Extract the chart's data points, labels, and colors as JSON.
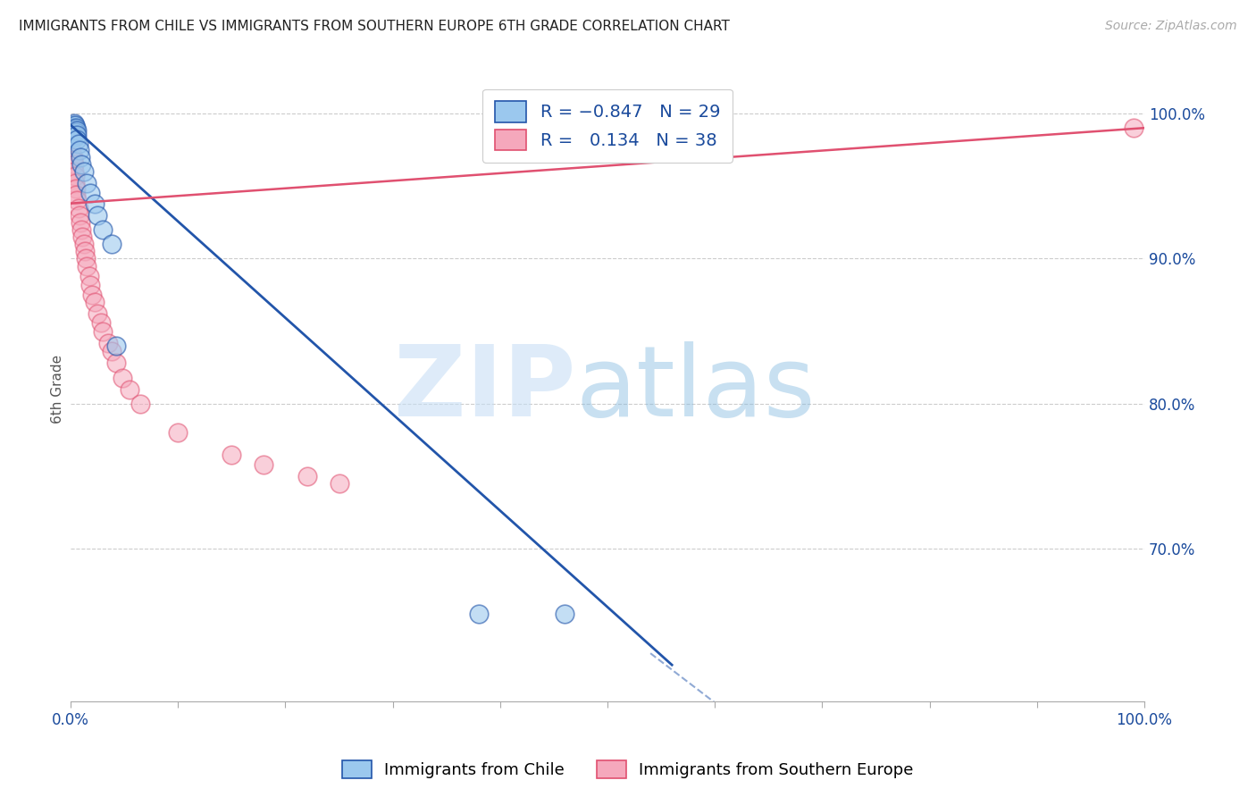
{
  "title": "IMMIGRANTS FROM CHILE VS IMMIGRANTS FROM SOUTHERN EUROPE 6TH GRADE CORRELATION CHART",
  "source": "Source: ZipAtlas.com",
  "ylabel": "6th Grade",
  "color_chile": "#9BC8EE",
  "color_seurope": "#F5A8BC",
  "color_line_chile": "#2255AA",
  "color_line_seurope": "#E05070",
  "color_text_blue": "#1A4A9C",
  "legend_label1": "Immigrants from Chile",
  "legend_label2": "Immigrants from Southern Europe",
  "chile_x": [
    0.001,
    0.002,
    0.002,
    0.003,
    0.003,
    0.003,
    0.004,
    0.004,
    0.004,
    0.005,
    0.005,
    0.005,
    0.006,
    0.006,
    0.006,
    0.007,
    0.008,
    0.009,
    0.01,
    0.012,
    0.015,
    0.018,
    0.022,
    0.025,
    0.03,
    0.038,
    0.042,
    0.38,
    0.46
  ],
  "chile_y": [
    0.99,
    0.992,
    0.989,
    0.993,
    0.99,
    0.988,
    0.992,
    0.989,
    0.986,
    0.99,
    0.987,
    0.984,
    0.988,
    0.985,
    0.982,
    0.979,
    0.975,
    0.97,
    0.965,
    0.96,
    0.952,
    0.945,
    0.938,
    0.93,
    0.92,
    0.91,
    0.84,
    0.655,
    0.655
  ],
  "seurope_x": [
    0.001,
    0.002,
    0.002,
    0.003,
    0.003,
    0.004,
    0.004,
    0.005,
    0.005,
    0.006,
    0.007,
    0.008,
    0.009,
    0.01,
    0.011,
    0.012,
    0.013,
    0.014,
    0.015,
    0.017,
    0.018,
    0.02,
    0.022,
    0.025,
    0.028,
    0.03,
    0.035,
    0.038,
    0.042,
    0.048,
    0.055,
    0.065,
    0.1,
    0.15,
    0.18,
    0.22,
    0.25,
    0.99
  ],
  "seurope_y": [
    0.975,
    0.97,
    0.968,
    0.965,
    0.96,
    0.957,
    0.952,
    0.948,
    0.944,
    0.94,
    0.935,
    0.93,
    0.925,
    0.92,
    0.915,
    0.91,
    0.905,
    0.9,
    0.895,
    0.888,
    0.882,
    0.875,
    0.87,
    0.862,
    0.856,
    0.85,
    0.842,
    0.836,
    0.828,
    0.818,
    0.81,
    0.8,
    0.78,
    0.765,
    0.758,
    0.75,
    0.745,
    0.99
  ],
  "chile_line_x": [
    0.0,
    0.56
  ],
  "chile_line_y": [
    0.992,
    0.62
  ],
  "seurope_line_x": [
    0.0,
    1.0
  ],
  "seurope_line_y": [
    0.938,
    0.99
  ],
  "xlim": [
    0.0,
    1.0
  ],
  "ylim": [
    0.595,
    1.025
  ],
  "yticks": [
    0.7,
    0.8,
    0.9,
    1.0
  ],
  "ytick_labels": [
    "70.0%",
    "80.0%",
    "90.0%",
    "100.0%"
  ],
  "xtick_positions": [
    0.0,
    0.1,
    0.2,
    0.3,
    0.4,
    0.5,
    0.6,
    0.7,
    0.8,
    0.9,
    1.0
  ],
  "xtick_labels": [
    "0.0%",
    "",
    "",
    "",
    "",
    "",
    "",
    "",
    "",
    "",
    "100.0%"
  ]
}
